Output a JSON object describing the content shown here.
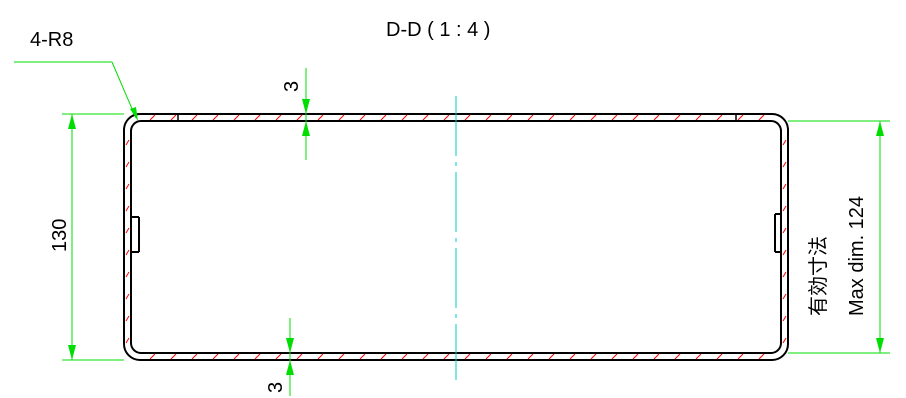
{
  "section_title": "D-D ( 1 : 4 )",
  "radius_callout": "4-R8",
  "dim_thickness_top": "3",
  "dim_thickness_bottom": "3",
  "dim_height_outer": "130",
  "dim_inner_label_jp": "有効寸法",
  "dim_inner_label_en": "Max dim. 124",
  "colors": {
    "outline": "#000000",
    "dimension": "#00dd00",
    "centerline": "#00cccc",
    "hatch": "#ff0000"
  }
}
